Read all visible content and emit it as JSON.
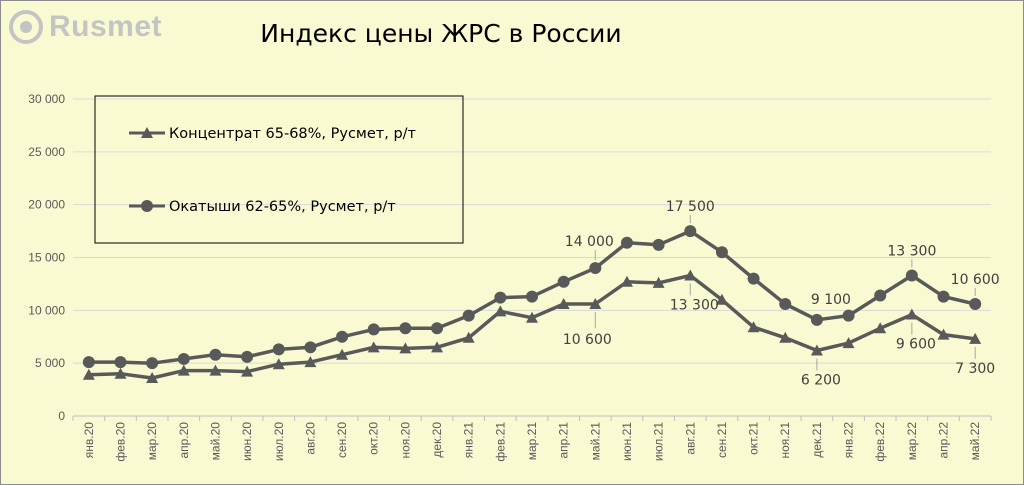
{
  "brand": {
    "name": "Rusmet",
    "logo_icon": "rusmet-logo-icon",
    "logo_color": "#c4c4c4"
  },
  "chart_data": {
    "type": "line",
    "title": "Индекс цены ЖРС в России",
    "xlabel": "",
    "ylabel": "",
    "ylim": [
      0,
      30000
    ],
    "yticks": [
      0,
      5000,
      10000,
      15000,
      20000,
      25000,
      30000
    ],
    "ytick_labels": [
      "0",
      "5 000",
      "10 000",
      "15 000",
      "20 000",
      "25 000",
      "30 000"
    ],
    "grid": true,
    "legend_position": "top-left",
    "line_color": "#595959",
    "categories": [
      "янв.20",
      "фев.20",
      "мар.20",
      "апр.20",
      "май.20",
      "июн.20",
      "июл.20",
      "авг.20",
      "сен.20",
      "окт.20",
      "ноя.20",
      "дек.20",
      "янв.21",
      "фев.21",
      "мар.21",
      "апр.21",
      "май.21",
      "июн.21",
      "июл.21",
      "авг.21",
      "сен.21",
      "окт.21",
      "ноя.21",
      "дек.21",
      "янв.22",
      "фев.22",
      "мар.22",
      "апр.22",
      "май.22"
    ],
    "series": [
      {
        "name": "Концентрат 65-68%, Русмет, р/т",
        "marker": "triangle",
        "values": [
          3900,
          4000,
          3600,
          4300,
          4300,
          4200,
          4900,
          5100,
          5800,
          6500,
          6400,
          6500,
          7400,
          9900,
          9300,
          10600,
          10600,
          12700,
          12600,
          13300,
          11000,
          8400,
          7400,
          6200,
          6900,
          8300,
          9600,
          7700,
          7300
        ]
      },
      {
        "name": "Окатыши 62-65%, Русмет, р/т",
        "marker": "circle",
        "values": [
          5100,
          5100,
          5000,
          5400,
          5800,
          5600,
          6300,
          6500,
          7500,
          8200,
          8300,
          8300,
          9500,
          11200,
          11300,
          12700,
          14000,
          16400,
          16200,
          17500,
          15500,
          13000,
          10600,
          9100,
          9500,
          11400,
          13300,
          11300,
          10600
        ]
      }
    ],
    "annotations": [
      {
        "series": 1,
        "index": 16,
        "text": "14 000",
        "pos": "above-left"
      },
      {
        "series": 1,
        "index": 19,
        "text": "17 500",
        "pos": "above"
      },
      {
        "series": 1,
        "index": 23,
        "text": "9 100",
        "pos": "above-right"
      },
      {
        "series": 1,
        "index": 26,
        "text": "13 300",
        "pos": "above"
      },
      {
        "series": 1,
        "index": 28,
        "text": "10 600",
        "pos": "above"
      },
      {
        "series": 0,
        "index": 16,
        "text": "10 600",
        "pos": "below-left"
      },
      {
        "series": 0,
        "index": 19,
        "text": "13 300",
        "pos": "below"
      },
      {
        "series": 0,
        "index": 23,
        "text": "6 200",
        "pos": "below"
      },
      {
        "series": 0,
        "index": 26,
        "text": "9 600",
        "pos": "below"
      },
      {
        "series": 0,
        "index": 28,
        "text": "7 300",
        "pos": "below"
      }
    ]
  }
}
